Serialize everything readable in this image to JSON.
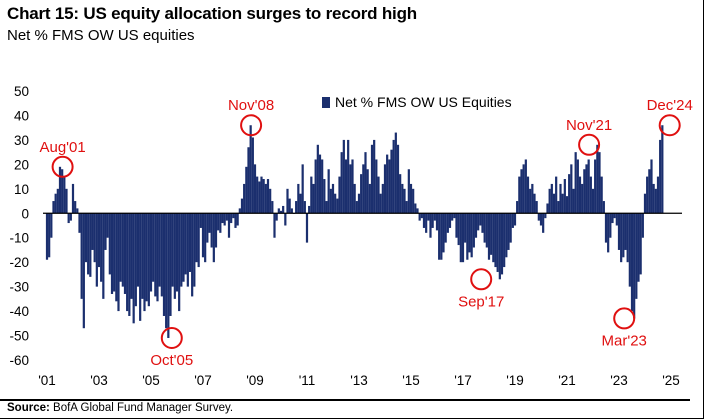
{
  "header": {
    "title": "Chart 15: US equity allocation surges to record high",
    "subtitle": "Net % FMS OW US equities"
  },
  "footer": {
    "source_label": "Source:",
    "source_text": "BofA Global Fund Manager Survey."
  },
  "colors": {
    "bar": "#1b2f6e",
    "annotation": "#e01010",
    "axis": "#000000"
  },
  "chart_data": {
    "type": "bar",
    "title": "Chart 15: US equity allocation surges to record high",
    "subtitle": "Net % FMS OW US equities",
    "xlabel": "",
    "ylabel": "",
    "ylim": [
      -60,
      50
    ],
    "yticks": [
      50,
      40,
      30,
      20,
      10,
      0,
      -10,
      -20,
      -30,
      -40,
      -50,
      -60
    ],
    "xticks": [
      "'01",
      "'03",
      "'05",
      "'07",
      "'09",
      "'11",
      "'13",
      "'15",
      "'17",
      "'19",
      "'21",
      "'23",
      "'25"
    ],
    "xrange": [
      2001.0,
      2025.0
    ],
    "grid": false,
    "legend": {
      "position": "top-center",
      "entries": [
        "Net % FMS OW US Equities"
      ]
    },
    "annotations": [
      {
        "label": "Aug'01",
        "date": 2001.6,
        "value": 19
      },
      {
        "label": "Oct'05",
        "date": 2005.8,
        "value": -51
      },
      {
        "label": "Nov'08",
        "date": 2008.85,
        "value": 36
      },
      {
        "label": "Sep'17",
        "date": 2017.7,
        "value": -27
      },
      {
        "label": "Nov'21",
        "date": 2021.85,
        "value": 28
      },
      {
        "label": "Mar'23",
        "date": 2023.2,
        "value": -43
      },
      {
        "label": "Dec'24",
        "date": 2024.95,
        "value": 36
      }
    ],
    "series": [
      {
        "name": "Net % FMS OW US Equities",
        "start": 2001.0,
        "step": 0.0833333,
        "values": [
          -19,
          -18,
          -10,
          5,
          8,
          10,
          19,
          18,
          15,
          10,
          -4,
          -3,
          12,
          5,
          2,
          -8,
          -35,
          -47,
          -20,
          -25,
          -26,
          -15,
          -20,
          -30,
          -22,
          -28,
          -35,
          -15,
          -10,
          -25,
          -33,
          -32,
          -36,
          -40,
          -28,
          -30,
          -33,
          -40,
          -42,
          -35,
          -45,
          -38,
          -30,
          -44,
          -35,
          -40,
          -36,
          -38,
          -32,
          -28,
          -34,
          -36,
          -30,
          -34,
          -42,
          -47,
          -51,
          -42,
          -30,
          -35,
          -32,
          -40,
          -30,
          -28,
          -25,
          -30,
          -24,
          -34,
          -30,
          -20,
          -22,
          -6,
          -18,
          -20,
          -12,
          -8,
          -14,
          -20,
          -14,
          -7,
          -8,
          -4,
          -5,
          -3,
          -10,
          -4,
          -2,
          -6,
          -5,
          2,
          6,
          12,
          19,
          27,
          36,
          31,
          20,
          15,
          13,
          15,
          14,
          12,
          14,
          10,
          5,
          -10,
          -3,
          2,
          1,
          3,
          -5,
          10,
          6,
          2,
          0,
          5,
          12,
          8,
          20,
          5,
          -12,
          3,
          15,
          12,
          22,
          28,
          24,
          22,
          14,
          5,
          18,
          10,
          12,
          8,
          6,
          15,
          25,
          30,
          22,
          30,
          20,
          22,
          12,
          5,
          8,
          16,
          20,
          25,
          18,
          12,
          28,
          30,
          22,
          15,
          8,
          12,
          20,
          24,
          22,
          26,
          30,
          33,
          28,
          16,
          12,
          10,
          5,
          18,
          12,
          10,
          4,
          2,
          -3,
          -2,
          -6,
          -8,
          -3,
          -10,
          -6,
          -3,
          -7,
          -19,
          -19,
          -16,
          -12,
          -8,
          -6,
          -3,
          -2,
          -10,
          -13,
          -20,
          -20,
          -12,
          -19,
          -16,
          -18,
          -14,
          -10,
          -7,
          -5,
          -8,
          -12,
          -14,
          -19,
          -17,
          -20,
          -22,
          -24,
          -27,
          -25,
          -22,
          -18,
          -15,
          -12,
          -6,
          -5,
          5,
          15,
          18,
          20,
          22,
          15,
          10,
          12,
          8,
          5,
          -3,
          -5,
          -8,
          -2,
          4,
          10,
          12,
          8,
          15,
          5,
          12,
          8,
          14,
          7,
          16,
          20,
          10,
          25,
          22,
          15,
          12,
          18,
          20,
          22,
          15,
          10,
          22,
          28,
          25,
          15,
          5,
          -12,
          -16,
          -10,
          -4,
          -2,
          -5,
          -15,
          -20,
          -18,
          -15,
          -20,
          -30,
          -40,
          -43,
          -35,
          -28,
          -25,
          -10,
          8,
          15,
          18,
          22,
          12,
          10,
          15,
          30,
          36
        ]
      }
    ]
  }
}
